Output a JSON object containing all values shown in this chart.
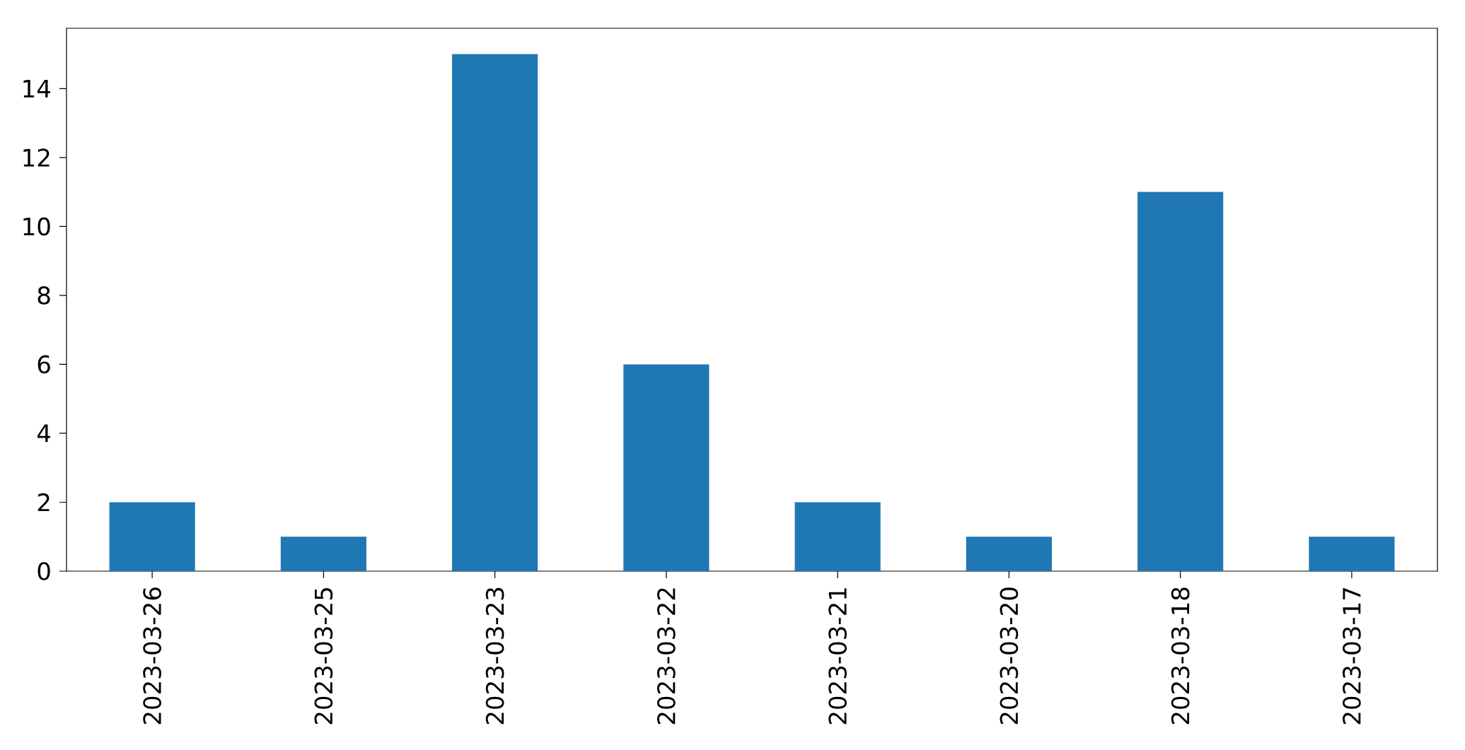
{
  "chart_data": {
    "type": "bar",
    "categories": [
      "2023-03-26",
      "2023-03-25",
      "2023-03-23",
      "2023-03-22",
      "2023-03-21",
      "2023-03-20",
      "2023-03-18",
      "2023-03-17"
    ],
    "values": [
      2,
      1,
      15,
      6,
      2,
      1,
      11,
      1
    ],
    "color": "#1f77b4",
    "ylim": [
      0,
      15.75
    ],
    "yticks": [
      0,
      2,
      4,
      6,
      8,
      10,
      12,
      14
    ],
    "grid": false
  }
}
